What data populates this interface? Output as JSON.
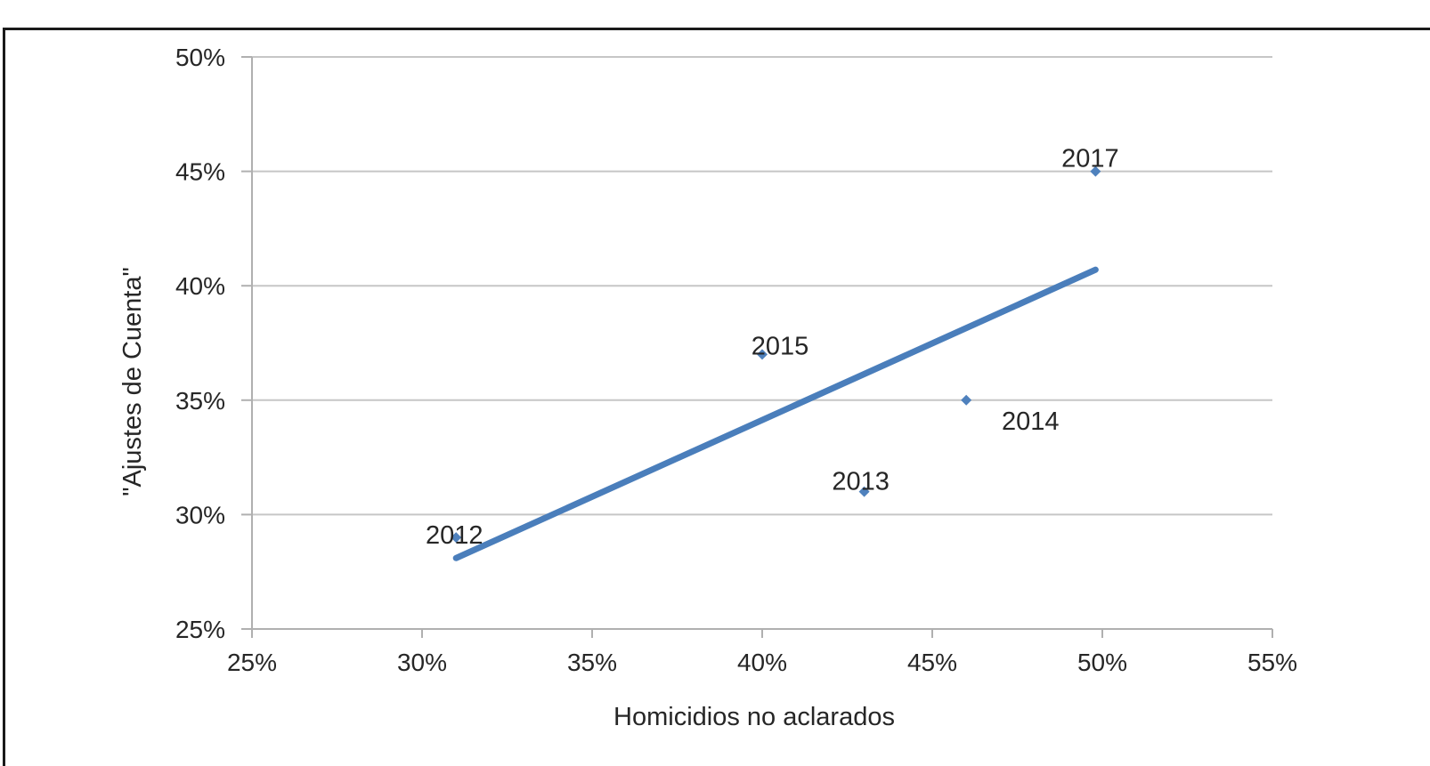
{
  "chart_data": {
    "type": "scatter",
    "title": "",
    "xlabel": "Homicidios no aclarados",
    "ylabel": "\"Ajustes de Cuenta\"",
    "xlim": [
      0.25,
      0.55
    ],
    "ylim": [
      0.25,
      0.5
    ],
    "x_ticks": [
      "25%",
      "30%",
      "35%",
      "40%",
      "45%",
      "50%",
      "55%"
    ],
    "y_ticks": [
      "25%",
      "30%",
      "35%",
      "40%",
      "45%",
      "50%"
    ],
    "grid": "horizontal",
    "legend": "none",
    "colors": {
      "points": "#4f81bd",
      "trend": "#4a7ebb",
      "grid": "#c6c6c6",
      "axis": "#b0b0b0"
    },
    "points": [
      {
        "label": "2012",
        "x": 0.31,
        "y": 0.29
      },
      {
        "label": "2013",
        "x": 0.43,
        "y": 0.31
      },
      {
        "label": "2014",
        "x": 0.46,
        "y": 0.35
      },
      {
        "label": "2015",
        "x": 0.4,
        "y": 0.37
      },
      {
        "label": "2017",
        "x": 0.498,
        "y": 0.45
      }
    ],
    "trendline": {
      "type": "linear",
      "x_start": 0.31,
      "y_start": 0.281,
      "x_end": 0.498,
      "y_end": 0.407
    }
  }
}
